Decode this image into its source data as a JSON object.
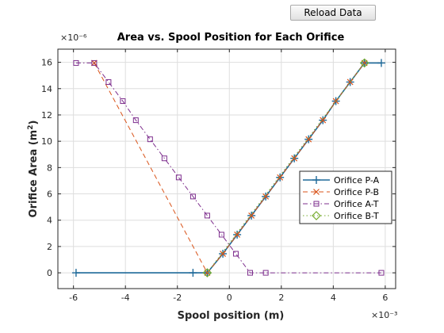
{
  "toolbar": {
    "reload_label": "Reload Data"
  },
  "chart_data": {
    "type": "line",
    "title": "Area vs. Spool Position for Each Orifice",
    "xlabel": "Spool position (m)",
    "ylabel_main": "Orifice Area (m",
    "ylabel_sup": "2",
    "ylabel_end": ")",
    "x_exponent": "×10⁻³",
    "y_exponent": "×10⁻⁶",
    "xlim": [
      -6.6,
      6.4
    ],
    "ylim": [
      -1.2,
      17.0
    ],
    "xticks": [
      -6,
      -4,
      -2,
      0,
      2,
      4,
      6
    ],
    "xtick_labels": [
      "-6",
      "-4",
      "-2",
      "0",
      "2",
      "4",
      "6"
    ],
    "yticks": [
      0,
      2,
      4,
      6,
      8,
      10,
      12,
      14,
      16
    ],
    "ytick_labels": [
      "0",
      "2",
      "4",
      "6",
      "8",
      "10",
      "12",
      "14",
      "16"
    ],
    "grid": true,
    "legend_placement": "right",
    "x_units_scale": "1e-3",
    "y_units_scale": "1e-6",
    "series": [
      {
        "name": "Orifice P-A",
        "color": "#1f6a9a",
        "marker": "plus",
        "line": "solid",
        "x": [
          -5.9,
          -1.4,
          -0.85,
          -0.25,
          0.3,
          0.85,
          1.4,
          1.95,
          2.5,
          3.05,
          3.6,
          4.1,
          4.65,
          5.2,
          5.85
        ],
        "y": [
          0,
          0,
          0,
          1.45,
          2.9,
          4.35,
          5.8,
          7.25,
          8.7,
          10.15,
          11.6,
          13.05,
          14.5,
          15.95,
          15.95
        ]
      },
      {
        "name": "Orifice P-B",
        "color": "#d95319",
        "marker": "x",
        "line": "dashed",
        "x": [
          -5.2,
          -0.85,
          -0.25,
          0.3,
          0.85,
          1.4,
          1.95,
          2.5,
          3.05,
          3.6,
          4.1,
          4.65,
          5.2
        ],
        "y": [
          15.95,
          0,
          1.45,
          2.9,
          4.35,
          5.8,
          7.25,
          8.7,
          10.15,
          11.6,
          13.05,
          14.5,
          15.95
        ]
      },
      {
        "name": "Orifice A-T",
        "color": "#7e2f8e",
        "marker": "square",
        "line": "dashdot",
        "x": [
          -5.9,
          -5.2,
          -4.65,
          -4.1,
          -3.6,
          -3.05,
          -2.5,
          -1.95,
          -1.4,
          -0.85,
          -0.3,
          0.25,
          0.8,
          1.4,
          5.85
        ],
        "y": [
          15.95,
          15.95,
          14.5,
          13.05,
          11.6,
          10.15,
          8.7,
          7.25,
          5.8,
          4.35,
          2.9,
          1.45,
          0,
          0,
          0
        ]
      },
      {
        "name": "Orifice B-T",
        "color": "#77ac30",
        "marker": "diamond",
        "line": "dotted",
        "x": [
          -0.85,
          5.2
        ],
        "y": [
          0,
          15.95
        ]
      }
    ]
  }
}
